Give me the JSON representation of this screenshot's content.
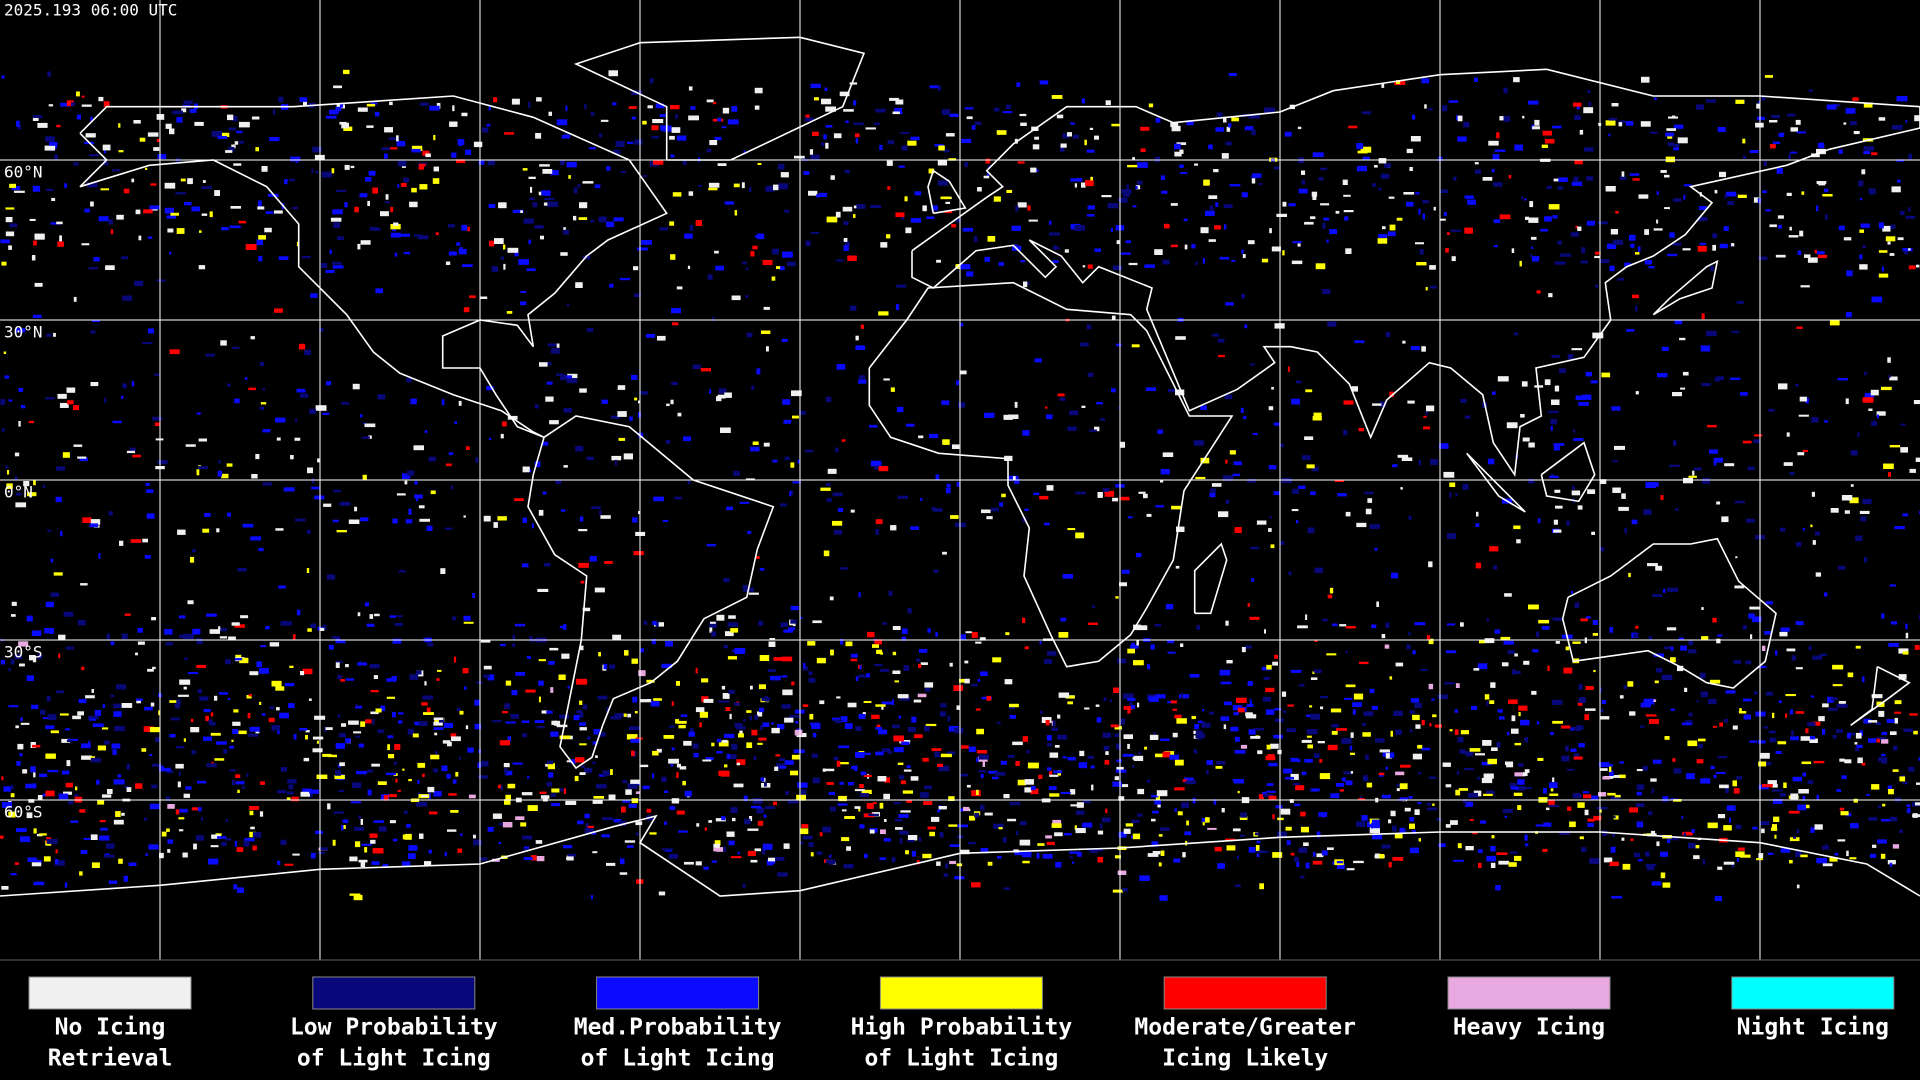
{
  "timestamp": "2025.193 06:00 UTC",
  "latitude_labels": [
    "60°N",
    "30°N",
    "0°N",
    "30°S",
    "60°S"
  ],
  "legend": [
    {
      "label_lines": [
        "No Icing",
        "Retrieval"
      ],
      "color": "#f0f0f0"
    },
    {
      "label_lines": [
        "Low Probability",
        "of Light Icing"
      ],
      "color": "#08087a"
    },
    {
      "label_lines": [
        "Med.Probability",
        "of Light Icing"
      ],
      "color": "#0a0aff"
    },
    {
      "label_lines": [
        "High Probability",
        "of Light Icing"
      ],
      "color": "#ffff00"
    },
    {
      "label_lines": [
        "Moderate/Greater",
        "Icing Likely"
      ],
      "color": "#ff0000"
    },
    {
      "label_lines": [
        "Heavy Icing"
      ],
      "color": "#e8a8e0"
    },
    {
      "label_lines": [
        "Night Icing"
      ],
      "color": "#00ffff"
    }
  ]
}
